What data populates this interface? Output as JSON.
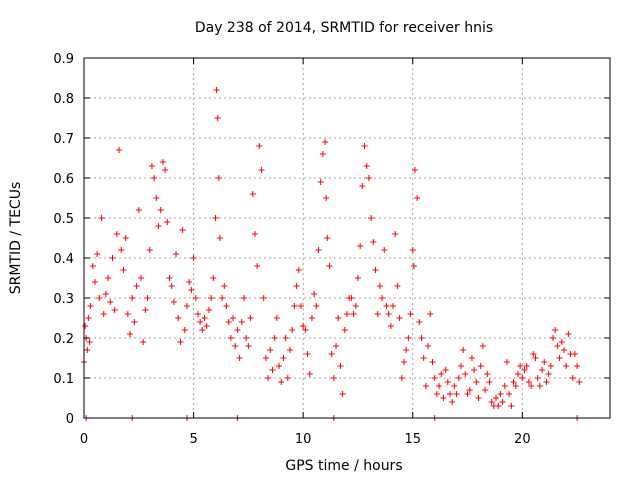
{
  "chart_data": {
    "type": "scatter",
    "title": "Day 238 of 2014, SRMTID for receiver hnis",
    "xlabel": "GPS time / hours",
    "ylabel": "SRMTID / TECUs",
    "xlim": [
      0,
      24
    ],
    "ylim": [
      0,
      0.9
    ],
    "xticks": [
      0,
      5,
      10,
      15,
      20
    ],
    "yticks": [
      0,
      0.1,
      0.2,
      0.3,
      0.4,
      0.5,
      0.6,
      0.7,
      0.8,
      0.9
    ],
    "xtick_labels": [
      "0",
      "5",
      "10",
      "15",
      "20"
    ],
    "ytick_labels": [
      "0",
      "0.1",
      "0.2",
      "0.3",
      "0.4",
      "0.5",
      "0.6",
      "0.7",
      "0.8",
      "0.9"
    ],
    "grid": true,
    "marker": "+",
    "color": "#ff0000",
    "series": [
      {
        "name": "SRMTID",
        "x": [
          0.0,
          0.05,
          0.1,
          0.15,
          0.2,
          0.25,
          0.3,
          0.4,
          0.5,
          0.6,
          0.7,
          0.8,
          0.9,
          1.0,
          1.1,
          1.2,
          1.3,
          1.4,
          1.5,
          1.6,
          1.7,
          1.8,
          1.9,
          2.0,
          2.1,
          2.2,
          2.3,
          2.4,
          2.5,
          2.6,
          2.7,
          2.8,
          2.9,
          3.0,
          3.1,
          3.2,
          3.3,
          3.4,
          3.5,
          3.6,
          3.7,
          3.8,
          3.9,
          4.0,
          4.1,
          4.2,
          4.3,
          4.4,
          4.5,
          4.6,
          4.7,
          4.8,
          4.9,
          5.0,
          5.1,
          5.2,
          5.3,
          5.4,
          5.5,
          5.6,
          5.7,
          5.8,
          5.9,
          6.0,
          6.05,
          6.1,
          6.15,
          6.2,
          6.3,
          6.4,
          6.5,
          6.6,
          6.7,
          6.8,
          6.9,
          7.0,
          7.1,
          7.2,
          7.3,
          7.4,
          7.5,
          7.6,
          7.7,
          7.8,
          7.9,
          8.0,
          8.1,
          8.2,
          8.3,
          8.4,
          8.5,
          8.6,
          8.7,
          8.8,
          8.9,
          9.0,
          9.1,
          9.2,
          9.3,
          9.4,
          9.5,
          9.6,
          9.7,
          9.8,
          9.9,
          10.0,
          10.1,
          10.2,
          10.3,
          10.4,
          10.5,
          10.6,
          10.7,
          10.8,
          10.9,
          11.0,
          11.05,
          11.1,
          11.2,
          11.3,
          11.4,
          11.5,
          11.6,
          11.7,
          11.8,
          11.9,
          12.0,
          12.1,
          12.2,
          12.3,
          12.4,
          12.5,
          12.6,
          12.7,
          12.8,
          12.9,
          13.0,
          13.1,
          13.2,
          13.3,
          13.4,
          13.5,
          13.6,
          13.7,
          13.8,
          13.9,
          14.0,
          14.1,
          14.2,
          14.3,
          14.4,
          14.5,
          14.6,
          14.7,
          14.8,
          14.9,
          15.0,
          15.05,
          15.1,
          15.2,
          15.3,
          15.4,
          15.5,
          15.6,
          15.7,
          15.8,
          15.9,
          16.0,
          16.1,
          16.2,
          16.3,
          16.4,
          16.5,
          16.6,
          16.7,
          16.8,
          16.9,
          17.0,
          17.1,
          17.2,
          17.3,
          17.4,
          17.5,
          17.6,
          17.7,
          17.8,
          17.9,
          18.0,
          18.1,
          18.2,
          18.3,
          18.4,
          18.5,
          18.6,
          18.7,
          18.8,
          18.9,
          19.0,
          19.1,
          19.2,
          19.3,
          19.4,
          19.5,
          19.6,
          19.7,
          19.8,
          19.9,
          20.0,
          20.1,
          20.2,
          20.3,
          20.4,
          20.5,
          20.6,
          20.7,
          20.8,
          20.9,
          21.0,
          21.1,
          21.2,
          21.3,
          21.4,
          21.5,
          21.6,
          21.7,
          21.8,
          21.9,
          22.0,
          22.1,
          22.2,
          22.3,
          22.4,
          22.5,
          22.6,
          0.1,
          2.2,
          4.7,
          7.0,
          11.4,
          16.0,
          22.5
        ],
        "y": [
          0.14,
          0.23,
          0.2,
          0.17,
          0.25,
          0.19,
          0.28,
          0.38,
          0.34,
          0.41,
          0.3,
          0.5,
          0.26,
          0.31,
          0.35,
          0.29,
          0.4,
          0.27,
          0.46,
          0.67,
          0.42,
          0.37,
          0.45,
          0.26,
          0.21,
          0.3,
          0.24,
          0.33,
          0.52,
          0.35,
          0.19,
          0.27,
          0.3,
          0.42,
          0.63,
          0.6,
          0.55,
          0.48,
          0.52,
          0.64,
          0.62,
          0.49,
          0.35,
          0.33,
          0.29,
          0.41,
          0.25,
          0.19,
          0.47,
          0.22,
          0.28,
          0.34,
          0.32,
          0.4,
          0.3,
          0.26,
          0.24,
          0.22,
          0.25,
          0.23,
          0.27,
          0.3,
          0.35,
          0.5,
          0.82,
          0.75,
          0.6,
          0.45,
          0.3,
          0.33,
          0.28,
          0.24,
          0.2,
          0.25,
          0.18,
          0.22,
          0.15,
          0.24,
          0.3,
          0.2,
          0.18,
          0.25,
          0.56,
          0.46,
          0.38,
          0.68,
          0.62,
          0.3,
          0.15,
          0.1,
          0.17,
          0.12,
          0.2,
          0.25,
          0.13,
          0.09,
          0.15,
          0.2,
          0.1,
          0.17,
          0.22,
          0.28,
          0.33,
          0.37,
          0.28,
          0.23,
          0.22,
          0.16,
          0.11,
          0.25,
          0.31,
          0.28,
          0.42,
          0.59,
          0.66,
          0.69,
          0.55,
          0.45,
          0.38,
          0.16,
          0.1,
          0.18,
          0.25,
          0.13,
          0.06,
          0.22,
          0.26,
          0.3,
          0.3,
          0.26,
          0.28,
          0.35,
          0.43,
          0.58,
          0.68,
          0.63,
          0.6,
          0.5,
          0.44,
          0.37,
          0.26,
          0.33,
          0.3,
          0.42,
          0.28,
          0.26,
          0.23,
          0.28,
          0.46,
          0.33,
          0.25,
          0.1,
          0.14,
          0.17,
          0.2,
          0.26,
          0.42,
          0.38,
          0.62,
          0.55,
          0.24,
          0.2,
          0.15,
          0.08,
          0.18,
          0.26,
          0.14,
          0.1,
          0.06,
          0.08,
          0.11,
          0.05,
          0.12,
          0.09,
          0.06,
          0.04,
          0.08,
          0.06,
          0.1,
          0.13,
          0.17,
          0.11,
          0.06,
          0.07,
          0.15,
          0.12,
          0.09,
          0.05,
          0.13,
          0.18,
          0.07,
          0.11,
          0.09,
          0.04,
          0.03,
          0.05,
          0.03,
          0.06,
          0.04,
          0.08,
          0.14,
          0.06,
          0.03,
          0.09,
          0.08,
          0.11,
          0.13,
          0.1,
          0.12,
          0.13,
          0.09,
          0.08,
          0.16,
          0.15,
          0.1,
          0.08,
          0.12,
          0.14,
          0.09,
          0.11,
          0.13,
          0.2,
          0.22,
          0.18,
          0.15,
          0.19,
          0.17,
          0.13,
          0.21,
          0.16,
          0.1,
          0.16,
          0.13,
          0.09,
          0.0,
          0.0,
          0.0,
          0.0,
          0.0,
          0.0,
          0.0
        ]
      }
    ]
  }
}
